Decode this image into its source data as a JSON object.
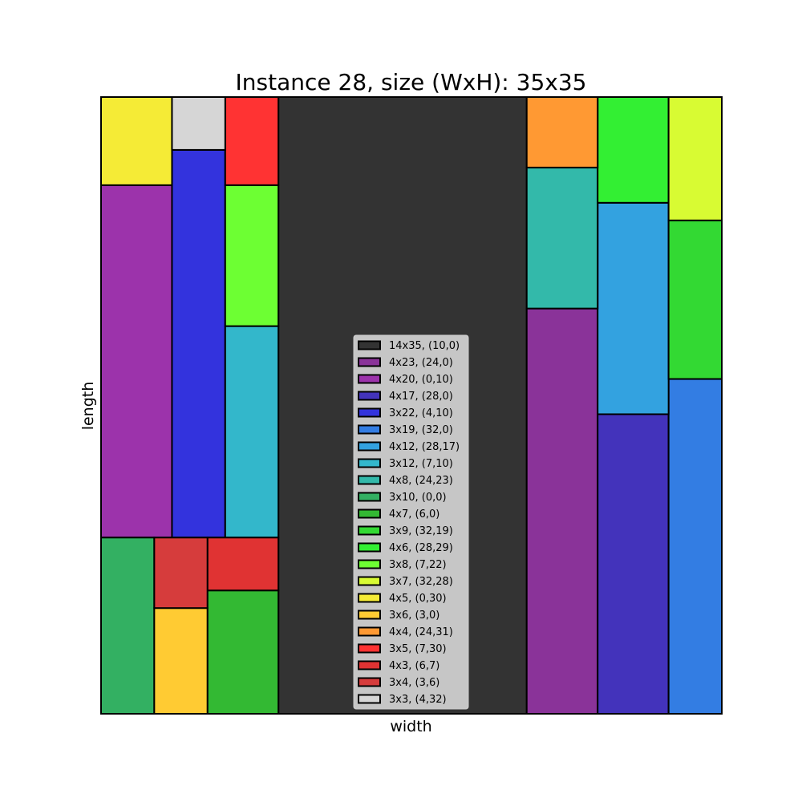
{
  "chart_data": {
    "type": "packing",
    "title": "Instance 28, size (WxH): 35x35",
    "xlabel": "width",
    "ylabel": "length",
    "container": {
      "width": 35,
      "height": 35
    },
    "xlim": [
      0,
      35
    ],
    "ylim": [
      0,
      35
    ],
    "grid": false,
    "legend_position": "center",
    "rectangles": [
      {
        "label": "14x35, (10,0)",
        "x": 10,
        "y": 0,
        "w": 14,
        "h": 35,
        "color": "#333333"
      },
      {
        "label": "4x23, (24,0)",
        "x": 24,
        "y": 0,
        "w": 4,
        "h": 23,
        "color": "#8a3399"
      },
      {
        "label": "4x20, (0,10)",
        "x": 0,
        "y": 10,
        "w": 4,
        "h": 20,
        "color": "#9c33ab"
      },
      {
        "label": "4x17, (28,0)",
        "x": 28,
        "y": 0,
        "w": 4,
        "h": 17,
        "color": "#4333bb"
      },
      {
        "label": "3x22, (4,10)",
        "x": 4,
        "y": 10,
        "w": 3,
        "h": 22,
        "color": "#3333dd"
      },
      {
        "label": "3x19, (32,0)",
        "x": 32,
        "y": 0,
        "w": 3,
        "h": 19,
        "color": "#337de3"
      },
      {
        "label": "4x12, (28,17)",
        "x": 28,
        "y": 17,
        "w": 4,
        "h": 12,
        "color": "#33a2e0"
      },
      {
        "label": "3x12, (7,10)",
        "x": 7,
        "y": 10,
        "w": 3,
        "h": 12,
        "color": "#33b7cb"
      },
      {
        "label": "4x8, (24,23)",
        "x": 24,
        "y": 23,
        "w": 4,
        "h": 8,
        "color": "#33b9aa"
      },
      {
        "label": "3x10, (0,0)",
        "x": 0,
        "y": 0,
        "w": 3,
        "h": 10,
        "color": "#33b062"
      },
      {
        "label": "4x7, (6,0)",
        "x": 6,
        "y": 0,
        "w": 4,
        "h": 7,
        "color": "#33b933"
      },
      {
        "label": "3x9, (32,19)",
        "x": 32,
        "y": 19,
        "w": 3,
        "h": 9,
        "color": "#33d933"
      },
      {
        "label": "4x6, (28,29)",
        "x": 28,
        "y": 29,
        "w": 4,
        "h": 6,
        "color": "#33ef33"
      },
      {
        "label": "3x8, (7,22)",
        "x": 7,
        "y": 22,
        "w": 3,
        "h": 8,
        "color": "#6dff33"
      },
      {
        "label": "3x7, (32,28)",
        "x": 32,
        "y": 28,
        "w": 3,
        "h": 7,
        "color": "#d8fb33"
      },
      {
        "label": "4x5, (0,30)",
        "x": 0,
        "y": 30,
        "w": 4,
        "h": 5,
        "color": "#f5eb36"
      },
      {
        "label": "3x6, (3,0)",
        "x": 3,
        "y": 0,
        "w": 3,
        "h": 6,
        "color": "#ffcb33"
      },
      {
        "label": "4x4, (24,31)",
        "x": 24,
        "y": 31,
        "w": 4,
        "h": 4,
        "color": "#ff9933"
      },
      {
        "label": "3x5, (7,30)",
        "x": 7,
        "y": 30,
        "w": 3,
        "h": 5,
        "color": "#ff3333"
      },
      {
        "label": "4x3, (6,7)",
        "x": 6,
        "y": 7,
        "w": 4,
        "h": 3,
        "color": "#e03333"
      },
      {
        "label": "3x4, (3,6)",
        "x": 3,
        "y": 6,
        "w": 3,
        "h": 4,
        "color": "#d63c3c"
      },
      {
        "label": "3x3, (4,32)",
        "x": 4,
        "y": 32,
        "w": 3,
        "h": 3,
        "color": "#d6d6d6"
      }
    ]
  }
}
